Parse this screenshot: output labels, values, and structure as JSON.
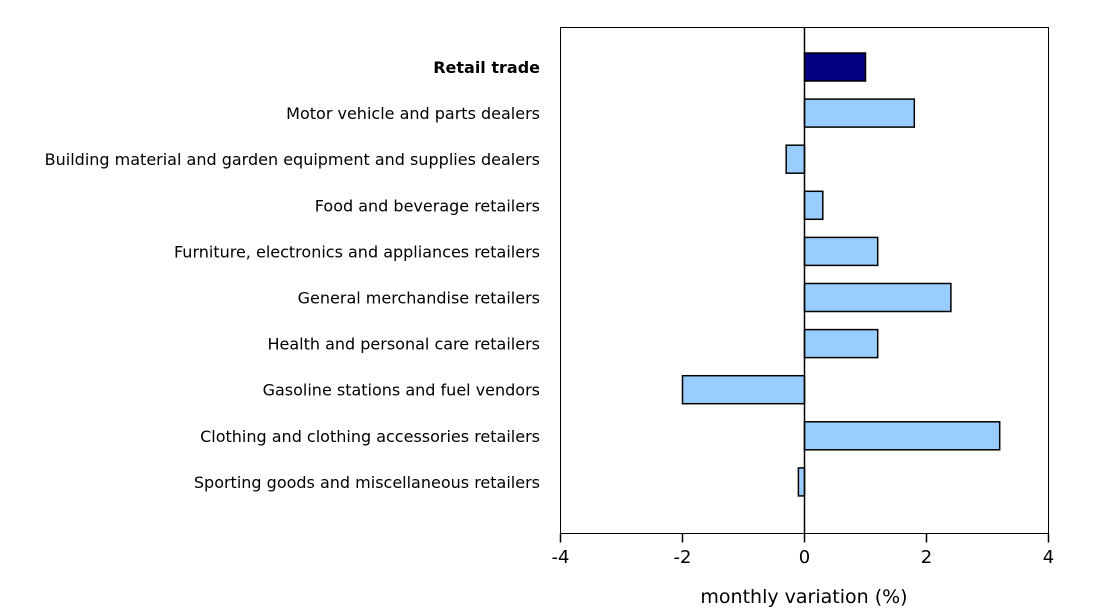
{
  "chart_data": {
    "type": "bar",
    "orientation": "horizontal",
    "categories": [
      "Retail trade",
      "Motor vehicle and parts dealers",
      "Building material and garden equipment and supplies dealers",
      "Food and beverage retailers",
      "Furniture, electronics and appliances retailers",
      "General merchandise retailers",
      "Health and personal care retailers",
      "Gasoline stations and fuel vendors",
      "Clothing and clothing accessories retailers",
      "Sporting goods and miscellaneous retailers"
    ],
    "values": [
      1.0,
      1.8,
      -0.3,
      0.3,
      1.2,
      2.4,
      1.2,
      -2.0,
      3.2,
      -0.1
    ],
    "highlight_index": 0,
    "colors": {
      "highlight": "#000080",
      "default": "#99ccff",
      "outline": "#000000"
    },
    "xlabel": "monthly variation (%)",
    "xlim": [
      -4,
      4
    ],
    "xticks": [
      "-4",
      "-2",
      "0",
      "2",
      "4"
    ],
    "grid": false,
    "legend": "none"
  }
}
